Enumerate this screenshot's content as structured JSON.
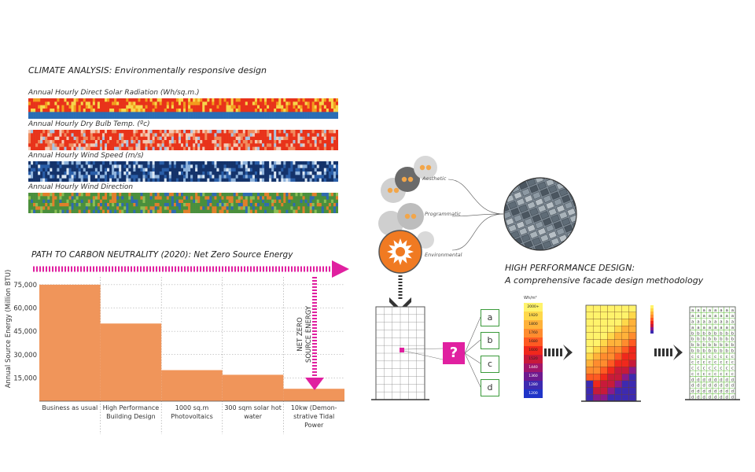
{
  "climate": {
    "title": "CLIMATE ANALYSIS: Environmentally responsive design",
    "strips": [
      {
        "label": "Annual Hourly Direct Solar Radiation (Wh/sq.m.)",
        "palette": [
          "#e8331a",
          "#f39b1c",
          "#f7d64a",
          "#2a6db5"
        ]
      },
      {
        "label": "Annual Hourly Dry Bulb Temp. (ºc)",
        "palette": [
          "#e8331a",
          "#f08a5d",
          "#f3c9b4",
          "#a9c3e0"
        ]
      },
      {
        "label": "Annual Hourly Wind Speed (m/s)",
        "palette": [
          "#14336b",
          "#2a5ea8",
          "#8fb3dc",
          "#dce8f4"
        ]
      },
      {
        "label": "Annual Hourly Wind Direction",
        "palette": [
          "#4a8f3c",
          "#e07f2b",
          "#2f6bb0",
          "#8dbf55"
        ]
      }
    ]
  },
  "chart_data": {
    "type": "bar",
    "title": "PATH TO CARBON NEUTRALITY (2020): Net Zero Source Energy",
    "ylabel": "Annual Source Energy (Million BTU)",
    "xlabel": "",
    "ylim": [
      0,
      80000
    ],
    "yticks": [
      "75,000",
      "60,000",
      "45,000",
      "30,000",
      "15,000"
    ],
    "ytick_values": [
      75000,
      60000,
      45000,
      30000,
      15000
    ],
    "categories": [
      "Business as usual",
      "High Performance Building Design",
      "1000 sq.m Photovoltaics",
      "300 sqm solar hot water",
      "10kw (Demon-strative Tidal Power"
    ],
    "category_lines": [
      [
        "Business as usual"
      ],
      [
        "High Performance",
        "Building Design"
      ],
      [
        "1000 sq.m",
        "Photovoltaics"
      ],
      [
        "300 sqm solar hot",
        "water"
      ],
      [
        "10kw (Demon-",
        "strative Tidal",
        "Power"
      ]
    ],
    "values": [
      75000,
      50000,
      20000,
      17000,
      8000
    ],
    "bar_color": "#f0955a",
    "annotation": [
      "NET ZERO",
      "SOURCE ENERGY"
    ],
    "arrow_color": "#e020a0"
  },
  "facade": {
    "title_line1": "HIGH PERFORMANCE DESIGN:",
    "title_line2": "A comprehensive facade design methodology",
    "circle_labels": [
      "Aesthetic",
      "Programmatic",
      "Environmental"
    ],
    "question_mark": "?",
    "options": [
      "a",
      "b",
      "c",
      "d"
    ],
    "legend_unit": "Wh/m²",
    "legend_values": [
      "2000+",
      "1920",
      "1800",
      "1760",
      "1680",
      "1600",
      "1520",
      "1440",
      "1360",
      "1280",
      "1200"
    ],
    "legend_colors": [
      "#fff36b",
      "#ffd84a",
      "#ffb23a",
      "#ff8c2e",
      "#ff5a22",
      "#f0281c",
      "#c81a3a",
      "#a0166a",
      "#6e1a8f",
      "#3d2ab0",
      "#1f34c8"
    ],
    "magenta": "#e020a0"
  }
}
